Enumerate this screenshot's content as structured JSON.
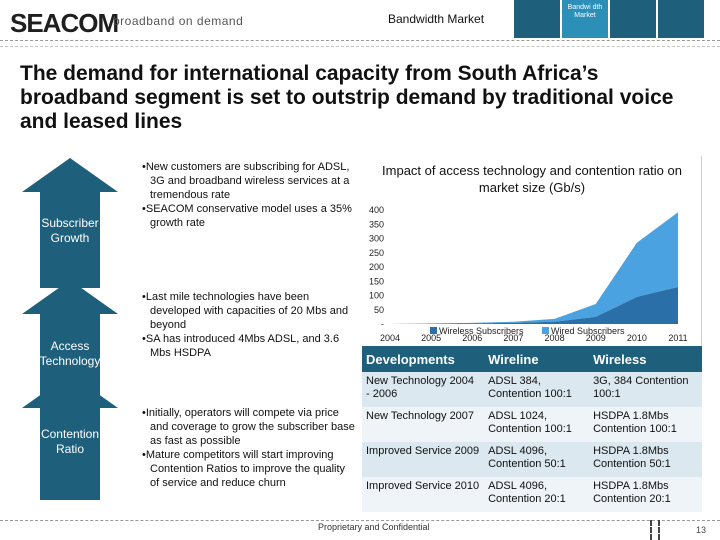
{
  "header": {
    "logo": "SEACOM",
    "tagline": "broadband on demand",
    "section_title": "Bandwidth Market",
    "tabs": [
      {
        "label": "",
        "active": false
      },
      {
        "label": "Bandwi dth Market",
        "active": true
      },
      {
        "label": "",
        "active": false
      },
      {
        "label": "",
        "active": false
      }
    ]
  },
  "headline": "The demand for international capacity from South Africa’s broadband segment is set to outstrip demand by traditional voice and leased lines",
  "stages": [
    {
      "label_lines": [
        "Subscriber",
        "Growth"
      ],
      "bullets": [
        "New customers are subscribing for ADSL, 3G and broadband wireless services at a tremendous rate",
        "SEACOM conservative model uses a 35% growth rate"
      ]
    },
    {
      "label_lines": [
        "Access",
        "Technology"
      ],
      "bullets": [
        "Last mile technologies have been developed with capacities of 20 Mbs and beyond",
        "SA has introduced 4Mbs ADSL, and 3.6 Mbs HSDPA"
      ]
    },
    {
      "label_lines": [
        "Contention",
        "Ratio"
      ],
      "bullets": [
        "Initially, operators will compete via price and coverage to grow the subscriber base as fast as possible",
        "Mature competitors will start improving Contention Ratios to improve the quality of service and reduce churn"
      ]
    }
  ],
  "chart_data": {
    "type": "area",
    "title": "Impact of access technology and contention ratio on market size (Gb/s)",
    "x": [
      "2004",
      "2005",
      "2006",
      "2007",
      "2008",
      "2009",
      "2010",
      "2011"
    ],
    "ylim": [
      0,
      400
    ],
    "y_ticks": [
      "-",
      "50",
      "100",
      "150",
      "200",
      "250",
      "300",
      "350",
      "400"
    ],
    "stacked": true,
    "series": [
      {
        "name": "Wireless Subscribers",
        "color": "#2a6fa8",
        "values": [
          0,
          1,
          2,
          4,
          8,
          25,
          95,
          130
        ]
      },
      {
        "name": "Wired Subscribers",
        "color": "#4aa3e0",
        "values": [
          0,
          1,
          2,
          4,
          10,
          45,
          190,
          262
        ]
      }
    ],
    "legend_position": "bottom",
    "grid": false
  },
  "table": {
    "headers": [
      "Developments",
      "Wireline",
      "Wireless"
    ],
    "rows": [
      [
        "New Technology 2004 - 2006",
        "ADSL 384, Contention 100:1",
        "3G, 384 Contention 100:1"
      ],
      [
        "New Technology 2007",
        "ADSL 1024, Contention 100:1",
        "HSDPA 1.8Mbs Contention 100:1"
      ],
      [
        "Improved Service 2009",
        "ADSL 4096, Contention 50:1",
        "HSDPA 1.8Mbs Contention 50:1"
      ],
      [
        "Improved Service 2010",
        "ADSL 4096, Contention 20:1",
        "HSDPA 1.8Mbs Contention 20:1"
      ]
    ]
  },
  "footer": {
    "text": "Proprietary and Confidential",
    "page_number": "13"
  },
  "colors": {
    "brand": "#1e5f7c",
    "tab_active": "#2c8fb8",
    "table_band": "#dbe8ef"
  }
}
